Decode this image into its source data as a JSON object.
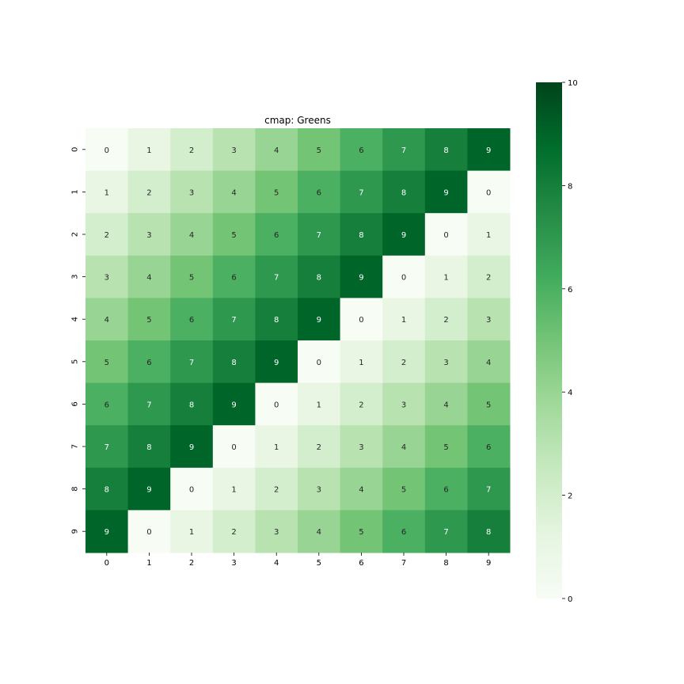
{
  "chart_data": {
    "type": "heatmap",
    "title": "cmap: Greens",
    "x_tick_labels": [
      "0",
      "1",
      "2",
      "3",
      "4",
      "5",
      "6",
      "7",
      "8",
      "9"
    ],
    "y_tick_labels": [
      "0",
      "1",
      "2",
      "3",
      "4",
      "5",
      "6",
      "7",
      "8",
      "9"
    ],
    "values": [
      [
        0,
        1,
        2,
        3,
        4,
        5,
        6,
        7,
        8,
        9
      ],
      [
        1,
        2,
        3,
        4,
        5,
        6,
        7,
        8,
        9,
        0
      ],
      [
        2,
        3,
        4,
        5,
        6,
        7,
        8,
        9,
        0,
        1
      ],
      [
        3,
        4,
        5,
        6,
        7,
        8,
        9,
        0,
        1,
        2
      ],
      [
        4,
        5,
        6,
        7,
        8,
        9,
        0,
        1,
        2,
        3
      ],
      [
        5,
        6,
        7,
        8,
        9,
        0,
        1,
        2,
        3,
        4
      ],
      [
        6,
        7,
        8,
        9,
        0,
        1,
        2,
        3,
        4,
        5
      ],
      [
        7,
        8,
        9,
        0,
        1,
        2,
        3,
        4,
        5,
        6
      ],
      [
        8,
        9,
        0,
        1,
        2,
        3,
        4,
        5,
        6,
        7
      ],
      [
        9,
        0,
        1,
        2,
        3,
        4,
        5,
        6,
        7,
        8
      ]
    ],
    "colorbar": {
      "vmin": 0,
      "vmax": 10,
      "ticks": [
        0,
        2,
        4,
        6,
        8,
        10
      ],
      "tick_labels": [
        "0",
        "2",
        "4",
        "6",
        "8",
        "10"
      ]
    },
    "colormap": "Greens",
    "colors": {
      "low": "#f7fcf5",
      "high": "#00441b"
    },
    "annotations": true,
    "grid": false
  }
}
